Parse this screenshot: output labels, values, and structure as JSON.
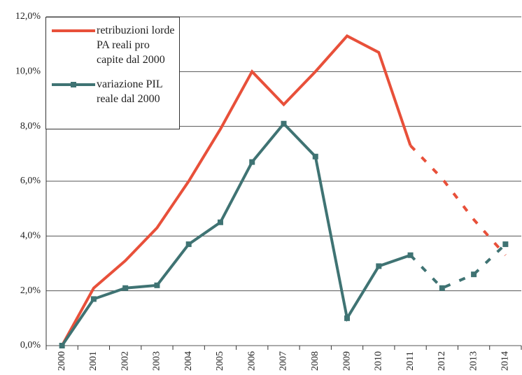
{
  "chart_data": {
    "type": "line",
    "categories": [
      "2000",
      "2001",
      "2002",
      "2003",
      "2004",
      "2005",
      "2006",
      "2007",
      "2008",
      "2009",
      "2010",
      "2011",
      "2012",
      "2013",
      "2014"
    ],
    "series": [
      {
        "name": "retribuzioni lorde PA reali pro capite dal 2000",
        "color": "#e8503a",
        "markers": false,
        "dashed_from_index": 11,
        "values": [
          0,
          2.1,
          3.1,
          4.3,
          6.0,
          7.9,
          10.0,
          8.8,
          10.0,
          11.3,
          10.7,
          7.3,
          6.1,
          4.6,
          3.3
        ]
      },
      {
        "name": "variazione PIL reale dal 2000",
        "color": "#3f7373",
        "markers": true,
        "dashed_from_index": 11,
        "values": [
          0,
          1.7,
          2.1,
          2.2,
          3.7,
          4.5,
          6.7,
          8.1,
          6.9,
          1.0,
          2.9,
          3.3,
          2.1,
          2.6,
          3.7
        ]
      }
    ],
    "ylim": [
      0,
      12
    ],
    "yticks": [
      {
        "value": 0,
        "label": "0,0%"
      },
      {
        "value": 2,
        "label": "2,0%"
      },
      {
        "value": 4,
        "label": "4,0%"
      },
      {
        "value": 6,
        "label": "6,0%"
      },
      {
        "value": 8,
        "label": "8,0%"
      },
      {
        "value": 10,
        "label": "10,0%"
      },
      {
        "value": 12,
        "label": "12,0%"
      }
    ],
    "grid": true,
    "legend": "top-left"
  }
}
